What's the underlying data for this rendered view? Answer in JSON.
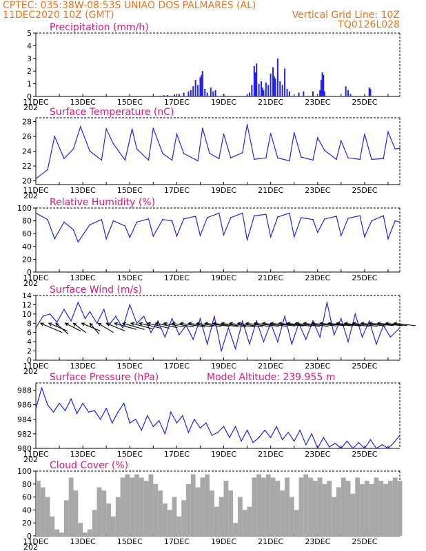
{
  "header": {
    "line1": "CPTEC:  035:38W-08:53S  UNIAO DOS PALMARES (AL)",
    "line2_left": "11DEC2020 10Z (GMT)",
    "line2_right": "Vertical Grid Line: 10Z",
    "line3_right": "TQ0126L028"
  },
  "colors": {
    "header": "#e8731a",
    "title": "#e0157a",
    "line": "#2222ee",
    "cloud": "#a8a8a8",
    "arrow": "#000000"
  },
  "x_axis": {
    "labels": [
      "11DEC",
      "13DEC",
      "15DEC",
      "17DEC",
      "19DEC",
      "21DEC",
      "23DEC",
      "25DEC"
    ],
    "label_days": [
      0,
      2,
      4,
      6,
      8,
      10,
      12,
      14
    ],
    "days_total": 15.5,
    "year_label": "202"
  },
  "chart_data": [
    {
      "type": "bar",
      "title": "Precipitation  (mm/h)",
      "ylim": [
        0,
        5
      ],
      "yticks": [
        0,
        1,
        2,
        3,
        4,
        5
      ],
      "x_unit": "days since 11DEC 10Z",
      "x": [
        5.3,
        5.45,
        5.6,
        5.9,
        6.1,
        6.3,
        6.5,
        6.6,
        6.7,
        6.8,
        6.9,
        7.0,
        7.05,
        7.1,
        7.2,
        7.3,
        7.45,
        7.55,
        7.65,
        8.0,
        9.0,
        9.1,
        9.2,
        9.3,
        9.35,
        9.4,
        9.5,
        9.6,
        9.65,
        9.7,
        9.8,
        9.9,
        10.0,
        10.1,
        10.15,
        10.2,
        10.3,
        10.4,
        10.5,
        10.6,
        10.7,
        10.8,
        11.2,
        11.4,
        11.8,
        12.1,
        12.15,
        12.2,
        12.25,
        12.3,
        13.2,
        13.3,
        13.4,
        14.2,
        14.25
      ],
      "values": [
        0.05,
        0.1,
        0.1,
        0.15,
        0.2,
        0.3,
        0.4,
        0.5,
        0.8,
        1.3,
        0.9,
        1.5,
        1.7,
        2.0,
        0.6,
        0.3,
        0.7,
        0.4,
        0.5,
        0.2,
        0.1,
        0.3,
        0.9,
        2.4,
        1.9,
        2.6,
        1.0,
        1.2,
        0.7,
        0.5,
        1.1,
        0.9,
        1.8,
        2.3,
        1.6,
        1.4,
        3.0,
        1.2,
        0.9,
        2.2,
        0.6,
        0.4,
        0.3,
        0.4,
        0.4,
        0.5,
        1.3,
        1.9,
        1.7,
        0.4,
        0.8,
        0.5,
        0.2,
        0.7,
        0.6
      ]
    },
    {
      "type": "line",
      "title": "Surface Temperature (nC)",
      "ylim": [
        19.5,
        28.5
      ],
      "yticks": [
        20,
        22,
        24,
        26,
        28
      ],
      "x_unit": "days since 11DEC 10Z",
      "x": [
        0,
        0.5,
        0.8,
        1.2,
        1.6,
        1.9,
        2.3,
        2.8,
        3.0,
        3.3,
        3.8,
        4.1,
        4.3,
        4.8,
        5.0,
        5.4,
        5.8,
        6.0,
        6.3,
        6.9,
        7.1,
        7.4,
        7.8,
        8.0,
        8.3,
        8.8,
        9.0,
        9.3,
        9.8,
        10.0,
        10.3,
        10.8,
        11.0,
        11.3,
        11.8,
        12.0,
        12.3,
        12.8,
        13.0,
        13.3,
        13.8,
        14.0,
        14.3,
        14.8,
        15.0,
        15.3,
        15.5
      ],
      "values": [
        20.3,
        21.5,
        26.0,
        23.0,
        24.3,
        27.3,
        24.0,
        22.8,
        27.0,
        25.0,
        22.8,
        27.0,
        24.3,
        22.8,
        27.1,
        23.7,
        22.8,
        26.3,
        23.7,
        22.7,
        27.1,
        23.7,
        23.0,
        26.3,
        23.1,
        23.8,
        27.6,
        22.9,
        23.1,
        26.4,
        23.1,
        22.7,
        26.5,
        23.2,
        22.8,
        25.8,
        24.1,
        22.9,
        25.4,
        23.1,
        22.9,
        26.3,
        22.9,
        23.0,
        26.6,
        24.3,
        24.4
      ]
    },
    {
      "type": "line",
      "title": "Relative Humidity (%)",
      "ylim": [
        0,
        100
      ],
      "yticks": [
        0,
        20,
        40,
        60,
        80,
        100
      ],
      "x_unit": "days since 11DEC 10Z",
      "x": [
        0,
        0.5,
        0.8,
        1.2,
        1.6,
        1.8,
        2.3,
        2.8,
        3.0,
        3.3,
        3.8,
        4.0,
        4.3,
        4.8,
        5.0,
        5.4,
        5.8,
        6.0,
        6.3,
        6.8,
        7.0,
        7.3,
        7.8,
        8.0,
        8.3,
        8.8,
        9.0,
        9.3,
        9.8,
        10.0,
        10.3,
        10.8,
        11.0,
        11.3,
        11.8,
        12.0,
        12.3,
        12.8,
        13.0,
        13.3,
        13.8,
        14.0,
        14.3,
        14.8,
        15.0,
        15.3,
        15.5
      ],
      "values": [
        92,
        82,
        52,
        78,
        66,
        47,
        74,
        82,
        52,
        80,
        72,
        54,
        78,
        83,
        56,
        82,
        80,
        56,
        83,
        87,
        57,
        85,
        92,
        58,
        85,
        92,
        50,
        88,
        90,
        55,
        86,
        92,
        55,
        85,
        82,
        62,
        83,
        87,
        57,
        84,
        88,
        55,
        80,
        88,
        52,
        80,
        78
      ]
    },
    {
      "type": "line",
      "title": "Surface Wind (m/s)",
      "ylim": [
        0,
        14
      ],
      "yticks": [
        0,
        2,
        4,
        6,
        8,
        10,
        12,
        14
      ],
      "x_unit": "days since 11DEC 10Z",
      "x": [
        0,
        0.3,
        0.6,
        0.9,
        1.2,
        1.5,
        1.8,
        2.1,
        2.3,
        2.6,
        2.9,
        3.1,
        3.4,
        3.7,
        4.0,
        4.3,
        4.6,
        4.9,
        5.2,
        5.5,
        5.8,
        6.1,
        6.4,
        6.7,
        7.0,
        7.3,
        7.6,
        7.9,
        8.2,
        8.5,
        8.8,
        9.1,
        9.4,
        9.7,
        10.0,
        10.3,
        10.6,
        10.9,
        11.2,
        11.5,
        11.8,
        12.1,
        12.4,
        12.7,
        13.0,
        13.3,
        13.6,
        13.9,
        14.2,
        14.5,
        14.8,
        15.1,
        15.5
      ],
      "values": [
        7,
        9.5,
        10,
        8.2,
        11,
        8.5,
        12.5,
        9,
        10.5,
        8,
        11,
        7.5,
        9.5,
        7,
        12,
        8,
        9.5,
        6,
        8.5,
        5,
        9,
        5.5,
        7.5,
        4.5,
        9,
        3.5,
        9.5,
        2,
        7,
        2.5,
        8.5,
        3.5,
        8.5,
        4,
        8,
        4,
        9.5,
        3.5,
        8,
        4.5,
        8.5,
        5,
        12.5,
        5.5,
        9,
        4,
        10,
        5,
        8.5,
        3.5,
        7.5,
        5,
        7
      ],
      "vectors_x": [
        0.2,
        0.55,
        0.85,
        1.25,
        1.6,
        1.95,
        2.3,
        2.65,
        3.0,
        3.35,
        3.7,
        4.05,
        4.4,
        4.75,
        5.1,
        5.45,
        5.8,
        6.15,
        6.5,
        6.85,
        7.2,
        7.55,
        7.9,
        8.25,
        8.6,
        8.95,
        9.3,
        9.65,
        10.0,
        10.35,
        10.7,
        11.05,
        11.4,
        11.75,
        12.1,
        12.45,
        12.8,
        13.15,
        13.5,
        13.85,
        14.2,
        14.55,
        14.9,
        15.25
      ],
      "vectors_u": [
        -7,
        -6,
        -4,
        -5,
        -4,
        -6,
        -3,
        -5,
        -6,
        -7,
        -7,
        -7,
        -7,
        -7,
        -7,
        -7,
        -7,
        -8,
        -8,
        -8,
        -8,
        -8,
        -8,
        -8,
        -8,
        -8,
        -8,
        -8,
        -8,
        -8,
        -8,
        -8,
        -8,
        -8,
        -8,
        -8,
        -8,
        -8,
        -8,
        -8,
        -8,
        -8,
        -7,
        -7
      ],
      "vectors_v": [
        3,
        2.5,
        3.5,
        2.5,
        3,
        2.5,
        3.5,
        3,
        2.5,
        2,
        2,
        1.8,
        1.6,
        1.6,
        1.4,
        1.3,
        1.2,
        1.2,
        1.2,
        1.1,
        1.0,
        1.1,
        1.2,
        1.2,
        1.2,
        1.1,
        1.0,
        1.0,
        0.9,
        0.9,
        1.0,
        1.0,
        1.0,
        0.9,
        0.8,
        0.9,
        0.9,
        1.0,
        1.0,
        0.9,
        0.8,
        0.8,
        0.8,
        0.8
      ]
    },
    {
      "type": "line",
      "title": "Surface Pressure (hPa)",
      "subtitle": "Model Altitude: 239.955  m",
      "ylim": [
        980,
        989
      ],
      "yticks": [
        980,
        982,
        984,
        986,
        988
      ],
      "x_unit": "days since 11DEC 10Z",
      "x": [
        0,
        0.25,
        0.5,
        0.75,
        1.0,
        1.25,
        1.5,
        1.75,
        2.0,
        2.25,
        2.5,
        2.75,
        3.0,
        3.25,
        3.5,
        3.75,
        4.0,
        4.25,
        4.5,
        4.75,
        5.0,
        5.25,
        5.5,
        5.75,
        6.0,
        6.25,
        6.5,
        6.75,
        7.0,
        7.25,
        7.5,
        7.75,
        8.0,
        8.25,
        8.5,
        8.75,
        9.0,
        9.25,
        9.5,
        9.75,
        10.0,
        10.25,
        10.5,
        10.75,
        11.0,
        11.25,
        11.5,
        11.75,
        12.0,
        12.25,
        12.5,
        12.75,
        13.0,
        13.25,
        13.5,
        13.75,
        14.0,
        14.25,
        14.5,
        14.75,
        15.0,
        15.25,
        15.5
      ],
      "values": [
        985.5,
        988.3,
        986.0,
        985.0,
        986.2,
        985.2,
        986.8,
        984.8,
        986.2,
        985.0,
        985.2,
        984.0,
        985.5,
        983.5,
        985.0,
        986.2,
        983.5,
        984.0,
        982.5,
        984.5,
        983.0,
        983.8,
        982.0,
        985.0,
        983.5,
        984.5,
        982.2,
        984.0,
        982.8,
        983.5,
        981.8,
        982.2,
        983.0,
        981.5,
        983.0,
        981.0,
        982.5,
        980.8,
        981.5,
        982.5,
        981.5,
        983.0,
        981.2,
        982.2,
        981.0,
        982.5,
        980.5,
        982.0,
        980.0,
        981.5,
        980.2,
        980.7,
        980.0,
        981.0,
        980.0,
        980.8,
        980.0,
        981.2,
        980.0,
        980.5,
        980.0,
        980.8,
        981.8
      ]
    },
    {
      "type": "bar",
      "title": "Cloud Cover (%)",
      "ylim": [
        0,
        100
      ],
      "yticks": [
        0,
        20,
        40,
        60,
        80,
        100
      ],
      "x_unit": "days since 11DEC 10Z",
      "x": [
        0,
        0.2,
        0.4,
        0.6,
        0.8,
        1.0,
        1.2,
        1.4,
        1.6,
        1.8,
        2.0,
        2.2,
        2.4,
        2.6,
        2.8,
        3.0,
        3.2,
        3.4,
        3.6,
        3.8,
        4.0,
        4.2,
        4.4,
        4.6,
        4.8,
        5.0,
        5.2,
        5.4,
        5.6,
        5.8,
        6.0,
        6.2,
        6.4,
        6.6,
        6.8,
        7.0,
        7.2,
        7.4,
        7.6,
        7.8,
        8.0,
        8.2,
        8.4,
        8.6,
        8.8,
        9.0,
        9.2,
        9.4,
        9.6,
        9.8,
        10.0,
        10.2,
        10.4,
        10.6,
        10.8,
        11.0,
        11.2,
        11.4,
        11.6,
        11.8,
        12.0,
        12.2,
        12.4,
        12.6,
        12.8,
        13.0,
        13.2,
        13.4,
        13.6,
        13.8,
        14.0,
        14.2,
        14.4,
        14.6,
        14.8,
        15.0,
        15.2,
        15.4
      ],
      "values": [
        85,
        75,
        60,
        30,
        10,
        5,
        55,
        90,
        70,
        20,
        5,
        10,
        40,
        75,
        70,
        50,
        30,
        60,
        90,
        95,
        90,
        95,
        90,
        85,
        95,
        80,
        70,
        50,
        40,
        60,
        30,
        55,
        80,
        95,
        75,
        90,
        95,
        70,
        45,
        60,
        85,
        70,
        20,
        60,
        40,
        45,
        90,
        95,
        90,
        95,
        90,
        85,
        70,
        90,
        60,
        40,
        90,
        95,
        90,
        85,
        90,
        80,
        85,
        60,
        75,
        90,
        85,
        65,
        90,
        80,
        85,
        80,
        90,
        85,
        80,
        85,
        90,
        85
      ]
    }
  ]
}
